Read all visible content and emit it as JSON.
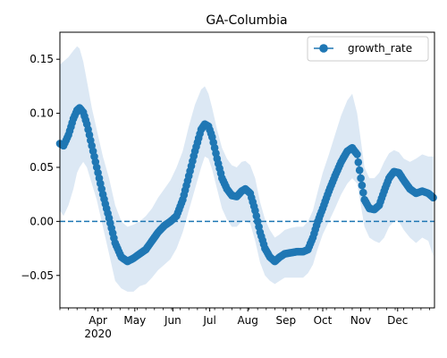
{
  "chart_data": {
    "type": "line",
    "title": "GA-Columbia",
    "xlabel": "",
    "ylabel": "",
    "xlim": [
      "2020-03-01",
      "2020-12-31"
    ],
    "ylim": [
      -0.08,
      0.175
    ],
    "yticks": [
      -0.05,
      0.0,
      0.05,
      0.1,
      0.15
    ],
    "ytick_labels": [
      "−0.05",
      "0.00",
      "0.05",
      "0.10",
      "0.15"
    ],
    "xticks": [
      {
        "date": "2020-04-01",
        "label": "Apr",
        "sublabel": "2020"
      },
      {
        "date": "2020-05-01",
        "label": "May"
      },
      {
        "date": "2020-06-01",
        "label": "Jun"
      },
      {
        "date": "2020-07-01",
        "label": "Jul"
      },
      {
        "date": "2020-08-01",
        "label": "Aug"
      },
      {
        "date": "2020-09-01",
        "label": "Sep"
      },
      {
        "date": "2020-10-01",
        "label": "Oct"
      },
      {
        "date": "2020-11-01",
        "label": "Nov"
      },
      {
        "date": "2020-12-01",
        "label": "Dec"
      }
    ],
    "grid": false,
    "legend_position": "top-right",
    "reference_line": {
      "y": 0,
      "style": "dashed"
    },
    "series": [
      {
        "name": "growth_rate",
        "color": "#1f77b4",
        "band_color": "#dce8f4",
        "points": [
          {
            "x": "2020-03-01",
            "y": 0.072,
            "lo": 0.01,
            "hi": 0.145
          },
          {
            "x": "2020-03-04",
            "y": 0.07,
            "lo": 0.005,
            "hi": 0.148
          },
          {
            "x": "2020-03-08",
            "y": 0.08,
            "lo": 0.015,
            "hi": 0.152
          },
          {
            "x": "2020-03-12",
            "y": 0.095,
            "lo": 0.03,
            "hi": 0.158
          },
          {
            "x": "2020-03-15",
            "y": 0.103,
            "lo": 0.045,
            "hi": 0.162
          },
          {
            "x": "2020-03-17",
            "y": 0.105,
            "lo": 0.05,
            "hi": 0.16
          },
          {
            "x": "2020-03-20",
            "y": 0.101,
            "lo": 0.055,
            "hi": 0.148
          },
          {
            "x": "2020-03-23",
            "y": 0.09,
            "lo": 0.05,
            "hi": 0.13
          },
          {
            "x": "2020-03-27",
            "y": 0.07,
            "lo": 0.035,
            "hi": 0.105
          },
          {
            "x": "2020-03-31",
            "y": 0.05,
            "lo": 0.02,
            "hi": 0.085
          },
          {
            "x": "2020-04-05",
            "y": 0.025,
            "lo": -0.005,
            "hi": 0.06
          },
          {
            "x": "2020-04-10",
            "y": 0.003,
            "lo": -0.03,
            "hi": 0.04
          },
          {
            "x": "2020-04-15",
            "y": -0.02,
            "lo": -0.055,
            "hi": 0.015
          },
          {
            "x": "2020-04-20",
            "y": -0.033,
            "lo": -0.062,
            "hi": 0.0
          },
          {
            "x": "2020-04-25",
            "y": -0.037,
            "lo": -0.065,
            "hi": -0.005
          },
          {
            "x": "2020-04-30",
            "y": -0.034,
            "lo": -0.065,
            "hi": -0.003
          },
          {
            "x": "2020-05-05",
            "y": -0.03,
            "lo": -0.06,
            "hi": 0.0
          },
          {
            "x": "2020-05-10",
            "y": -0.026,
            "lo": -0.058,
            "hi": 0.005
          },
          {
            "x": "2020-05-15",
            "y": -0.018,
            "lo": -0.052,
            "hi": 0.012
          },
          {
            "x": "2020-05-20",
            "y": -0.01,
            "lo": -0.045,
            "hi": 0.022
          },
          {
            "x": "2020-05-25",
            "y": -0.004,
            "lo": -0.04,
            "hi": 0.03
          },
          {
            "x": "2020-05-30",
            "y": 0.0,
            "lo": -0.035,
            "hi": 0.038
          },
          {
            "x": "2020-06-04",
            "y": 0.005,
            "lo": -0.025,
            "hi": 0.05
          },
          {
            "x": "2020-06-09",
            "y": 0.02,
            "lo": -0.01,
            "hi": 0.065
          },
          {
            "x": "2020-06-14",
            "y": 0.042,
            "lo": 0.01,
            "hi": 0.088
          },
          {
            "x": "2020-06-19",
            "y": 0.065,
            "lo": 0.03,
            "hi": 0.108
          },
          {
            "x": "2020-06-24",
            "y": 0.085,
            "lo": 0.05,
            "hi": 0.122
          },
          {
            "x": "2020-06-27",
            "y": 0.09,
            "lo": 0.06,
            "hi": 0.125
          },
          {
            "x": "2020-06-30",
            "y": 0.088,
            "lo": 0.058,
            "hi": 0.118
          },
          {
            "x": "2020-07-03",
            "y": 0.078,
            "lo": 0.048,
            "hi": 0.105
          },
          {
            "x": "2020-07-07",
            "y": 0.058,
            "lo": 0.03,
            "hi": 0.085
          },
          {
            "x": "2020-07-11",
            "y": 0.04,
            "lo": 0.012,
            "hi": 0.068
          },
          {
            "x": "2020-07-15",
            "y": 0.03,
            "lo": 0.002,
            "hi": 0.058
          },
          {
            "x": "2020-07-19",
            "y": 0.024,
            "lo": -0.005,
            "hi": 0.052
          },
          {
            "x": "2020-07-23",
            "y": 0.023,
            "lo": -0.005,
            "hi": 0.05
          },
          {
            "x": "2020-07-27",
            "y": 0.028,
            "lo": 0.0,
            "hi": 0.055
          },
          {
            "x": "2020-07-30",
            "y": 0.03,
            "lo": 0.0,
            "hi": 0.056
          },
          {
            "x": "2020-08-03",
            "y": 0.026,
            "lo": -0.002,
            "hi": 0.052
          },
          {
            "x": "2020-08-07",
            "y": 0.01,
            "lo": -0.018,
            "hi": 0.04
          },
          {
            "x": "2020-08-11",
            "y": -0.01,
            "lo": -0.038,
            "hi": 0.018
          },
          {
            "x": "2020-08-15",
            "y": -0.025,
            "lo": -0.05,
            "hi": 0.002
          },
          {
            "x": "2020-08-19",
            "y": -0.033,
            "lo": -0.055,
            "hi": -0.008
          },
          {
            "x": "2020-08-23",
            "y": -0.037,
            "lo": -0.058,
            "hi": -0.015
          },
          {
            "x": "2020-08-27",
            "y": -0.033,
            "lo": -0.055,
            "hi": -0.012
          },
          {
            "x": "2020-08-31",
            "y": -0.03,
            "lo": -0.052,
            "hi": -0.008
          },
          {
            "x": "2020-09-05",
            "y": -0.029,
            "lo": -0.052,
            "hi": -0.006
          },
          {
            "x": "2020-09-10",
            "y": -0.028,
            "lo": -0.052,
            "hi": -0.005
          },
          {
            "x": "2020-09-15",
            "y": -0.028,
            "lo": -0.052,
            "hi": -0.005
          },
          {
            "x": "2020-09-19",
            "y": -0.026,
            "lo": -0.048,
            "hi": 0.0
          },
          {
            "x": "2020-09-23",
            "y": -0.015,
            "lo": -0.04,
            "hi": 0.01
          },
          {
            "x": "2020-09-27",
            "y": 0.0,
            "lo": -0.025,
            "hi": 0.028
          },
          {
            "x": "2020-10-01",
            "y": 0.012,
            "lo": -0.012,
            "hi": 0.045
          },
          {
            "x": "2020-10-06",
            "y": 0.028,
            "lo": 0.0,
            "hi": 0.062
          },
          {
            "x": "2020-10-11",
            "y": 0.042,
            "lo": 0.012,
            "hi": 0.08
          },
          {
            "x": "2020-10-16",
            "y": 0.055,
            "lo": 0.025,
            "hi": 0.098
          },
          {
            "x": "2020-10-21",
            "y": 0.065,
            "lo": 0.035,
            "hi": 0.112
          },
          {
            "x": "2020-10-25",
            "y": 0.068,
            "lo": 0.04,
            "hi": 0.118
          },
          {
            "x": "2020-10-29",
            "y": 0.062,
            "lo": 0.035,
            "hi": 0.1
          },
          {
            "x": "2020-11-01",
            "y": 0.04,
            "lo": 0.015,
            "hi": 0.075
          },
          {
            "x": "2020-11-04",
            "y": 0.02,
            "lo": -0.005,
            "hi": 0.05
          },
          {
            "x": "2020-11-08",
            "y": 0.012,
            "lo": -0.015,
            "hi": 0.04
          },
          {
            "x": "2020-11-12",
            "y": 0.011,
            "lo": -0.018,
            "hi": 0.04
          },
          {
            "x": "2020-11-16",
            "y": 0.015,
            "lo": -0.02,
            "hi": 0.045
          },
          {
            "x": "2020-11-20",
            "y": 0.028,
            "lo": -0.015,
            "hi": 0.055
          },
          {
            "x": "2020-11-24",
            "y": 0.04,
            "lo": -0.005,
            "hi": 0.063
          },
          {
            "x": "2020-11-28",
            "y": 0.046,
            "lo": 0.0,
            "hi": 0.066
          },
          {
            "x": "2020-12-02",
            "y": 0.045,
            "lo": 0.0,
            "hi": 0.064
          },
          {
            "x": "2020-12-06",
            "y": 0.038,
            "lo": -0.008,
            "hi": 0.058
          },
          {
            "x": "2020-12-11",
            "y": 0.03,
            "lo": -0.015,
            "hi": 0.055
          },
          {
            "x": "2020-12-16",
            "y": 0.026,
            "lo": -0.02,
            "hi": 0.058
          },
          {
            "x": "2020-12-21",
            "y": 0.028,
            "lo": -0.015,
            "hi": 0.062
          },
          {
            "x": "2020-12-26",
            "y": 0.026,
            "lo": -0.018,
            "hi": 0.06
          },
          {
            "x": "2020-12-30",
            "y": 0.022,
            "lo": -0.032,
            "hi": 0.06
          }
        ]
      }
    ]
  }
}
